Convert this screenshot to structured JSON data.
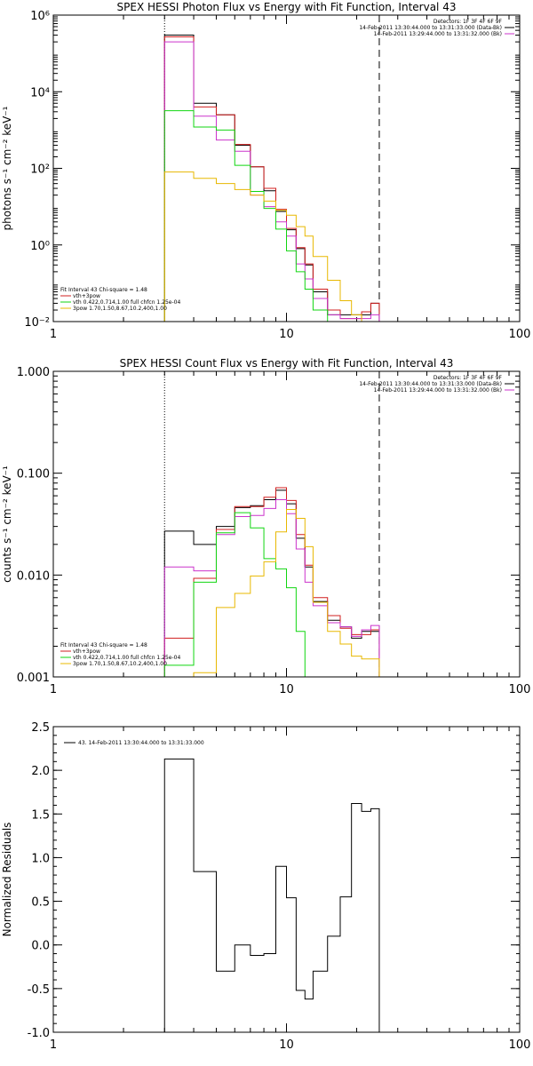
{
  "figure": {
    "colors": {
      "black": "#000000",
      "red": "#d11f1f",
      "green": "#11d611",
      "magenta": "#cc33cc",
      "orange": "#e8b800"
    }
  },
  "chart_data": [
    {
      "type": "line",
      "title": "SPEX HESSI Photon Flux vs Energy with Fit Function, Interval 43",
      "xlabel": "",
      "ylabel": "photons s⁻¹ cm⁻² keV⁻¹",
      "xscale": "log",
      "yscale": "log",
      "xlim": [
        1,
        100
      ],
      "ylim": [
        0.01,
        1000000
      ],
      "x_ticks": [
        1,
        10,
        100
      ],
      "x_tick_labels": [
        "1",
        "10",
        "100"
      ],
      "y_ticks": [
        0.01,
        1,
        100,
        10000,
        1000000
      ],
      "y_tick_labels": [
        "10⁻²",
        "10⁰",
        "10²",
        "10⁴",
        "10⁶"
      ],
      "energy_edges": [
        3,
        4,
        5,
        6,
        7,
        8,
        9,
        10,
        11,
        12,
        13,
        15,
        17,
        19,
        21,
        23,
        25
      ],
      "vlines": [
        {
          "x": 3,
          "style": "dotted"
        },
        {
          "x": 25,
          "style": "dashed"
        }
      ],
      "info_lines": [
        {
          "text": "Detectors: 1F 3F 4F 6F 9F",
          "swatch": ""
        },
        {
          "text": "14-Feb-2011 13:30:44.000 to 13:31:33.000 (Data-Bk)",
          "swatch": "#000000"
        },
        {
          "text": "14-Feb-2011 13:29:44.000 to 13:31:32.000 (Bk)",
          "swatch": "#cc33cc"
        }
      ],
      "legend_lines": [
        {
          "text": "Fit Interval 43   Chi-square = 1.48",
          "swatch": ""
        },
        {
          "text": "vth+3pow",
          "swatch": "#d11f1f"
        },
        {
          "text": "vth 0.422,0.714,1.00  full chfcn 1.25e-04",
          "swatch": "#11d611"
        },
        {
          "text": "3pow 1.70,1.50,8.67,10.2,400,1.00",
          "swatch": "#e8b800"
        }
      ],
      "series": [
        {
          "color": "#000000",
          "values": [
            300000,
            5000,
            2500,
            400,
            110,
            26,
            7.5,
            2.5,
            0.8,
            0.3,
            0.06,
            0.015,
            0.015,
            0.015,
            0.015,
            0.03
          ]
        },
        {
          "color": "#d11f1f",
          "values": [
            270000,
            4000,
            2500,
            420,
            110,
            30,
            8.5,
            2.7,
            0.85,
            0.32,
            0.07,
            0.02,
            0.012,
            0.012,
            0.018,
            0.03
          ]
        },
        {
          "color": "#cc33cc",
          "values": [
            200000,
            2300,
            550,
            280,
            20,
            10,
            4,
            1.7,
            0.32,
            0.13,
            0.04,
            0.015,
            0.012,
            0.012,
            0.012,
            0.015
          ]
        },
        {
          "color": "#11d611",
          "values": [
            3200,
            1200,
            1000,
            120,
            25,
            9,
            2.6,
            0.7,
            0.2,
            0.07,
            0.02,
            0.01
          ]
        },
        {
          "color": "#e8b800",
          "values": [
            80,
            55,
            40,
            28,
            20,
            14,
            8,
            6,
            3,
            1.7,
            0.5,
            0.12,
            0.035,
            0.015,
            0.01,
            0.01
          ]
        }
      ]
    },
    {
      "type": "line",
      "title": "SPEX HESSI Count Flux vs Energy with Fit Function, Interval 43",
      "xlabel": "",
      "ylabel": "counts s⁻¹ cm⁻² keV⁻¹",
      "xscale": "log",
      "yscale": "log",
      "xlim": [
        1,
        100
      ],
      "ylim": [
        0.001,
        1
      ],
      "x_ticks": [
        1,
        10,
        100
      ],
      "x_tick_labels": [
        "1",
        "10",
        "100"
      ],
      "y_ticks": [
        0.001,
        0.01,
        0.1,
        1
      ],
      "y_tick_labels": [
        "0.001",
        "0.010",
        "0.100",
        "1.000"
      ],
      "energy_edges": [
        3,
        4,
        5,
        6,
        7,
        8,
        9,
        10,
        11,
        12,
        13,
        15,
        17,
        19,
        21,
        23,
        25
      ],
      "vlines": [
        {
          "x": 3,
          "style": "dotted"
        },
        {
          "x": 25,
          "style": "dashed"
        }
      ],
      "info_lines": [
        {
          "text": "Detectors: 1F 3F 4F 6F 9F",
          "swatch": ""
        },
        {
          "text": "14-Feb-2011 13:30:44.000 to 13:31:33.000 (Data-Bk)",
          "swatch": "#000000"
        },
        {
          "text": "14-Feb-2011 13:29:44.000 to 13:31:32.000 (Bk)",
          "swatch": "#cc33cc"
        }
      ],
      "legend_lines": [
        {
          "text": "Fit Interval 43   Chi-square = 1.48",
          "swatch": ""
        },
        {
          "text": "vth+3pow",
          "swatch": "#d11f1f"
        },
        {
          "text": "vth 0.422,0.714,1.00  full chfcn 1.25e-04",
          "swatch": "#11d611"
        },
        {
          "text": "3pow 1.70,1.50,8.67,10.2,400,1.00",
          "swatch": "#e8b800"
        }
      ],
      "series": [
        {
          "color": "#000000",
          "values": [
            0.027,
            0.02,
            0.03,
            0.046,
            0.048,
            0.055,
            0.068,
            0.05,
            0.023,
            0.012,
            0.0055,
            0.0036,
            0.0031,
            0.0024,
            0.0028,
            0.0028
          ]
        },
        {
          "color": "#d11f1f",
          "values": [
            0.0024,
            0.0093,
            0.028,
            0.047,
            0.047,
            0.058,
            0.072,
            0.054,
            0.025,
            0.0125,
            0.006,
            0.004,
            0.003,
            0.0026,
            0.0026,
            0.0029
          ]
        },
        {
          "color": "#cc33cc",
          "values": [
            0.012,
            0.011,
            0.025,
            0.0375,
            0.0385,
            0.045,
            0.055,
            0.04,
            0.018,
            0.0085,
            0.005,
            0.0034,
            0.0031,
            0.0025,
            0.0029,
            0.0032
          ]
        },
        {
          "color": "#11d611",
          "values": [
            0.0013,
            0.0085,
            0.026,
            0.041,
            0.029,
            0.0145,
            0.0115,
            0.0075,
            0.0028,
            0.001
          ]
        },
        {
          "color": "#e8b800",
          "values": [
            0.001,
            0.0011,
            0.0048,
            0.0066,
            0.0098,
            0.0135,
            0.0265,
            0.044,
            0.036,
            0.019,
            0.0054,
            0.0028,
            0.0021,
            0.0016,
            0.0015,
            0.0015
          ]
        }
      ]
    },
    {
      "type": "line",
      "title": "",
      "xlabel": "",
      "ylabel": "Normalized Residuals",
      "xscale": "log",
      "yscale": "linear",
      "xlim": [
        1,
        100
      ],
      "ylim": [
        -1,
        2.5
      ],
      "x_ticks": [
        1,
        10,
        100
      ],
      "x_tick_labels": [
        "1",
        "10",
        "100"
      ],
      "y_ticks": [
        -1,
        -0.5,
        0,
        0.5,
        1,
        1.5,
        2,
        2.5
      ],
      "y_tick_labels": [
        "-1.0",
        "-0.5",
        "0.0",
        "0.5",
        "1.0",
        "1.5",
        "2.0",
        "2.5"
      ],
      "energy_edges": [
        3,
        4,
        5,
        6,
        7,
        8,
        9,
        10,
        11,
        12,
        13,
        15,
        17,
        19,
        21,
        23,
        25
      ],
      "vlines": [],
      "info_lines": [],
      "legend_lines": [
        {
          "text": "43. 14-Feb-2011 13:30:44.000 to 13:31:33.000",
          "swatch": "#000000"
        }
      ],
      "series": [
        {
          "color": "#000000",
          "values": [
            2.13,
            0.84,
            -0.3,
            0.0,
            -0.12,
            -0.1,
            0.9,
            0.54,
            -0.52,
            -0.62,
            -0.3,
            0.1,
            0.55,
            1.62,
            1.53,
            1.56
          ]
        }
      ]
    }
  ]
}
